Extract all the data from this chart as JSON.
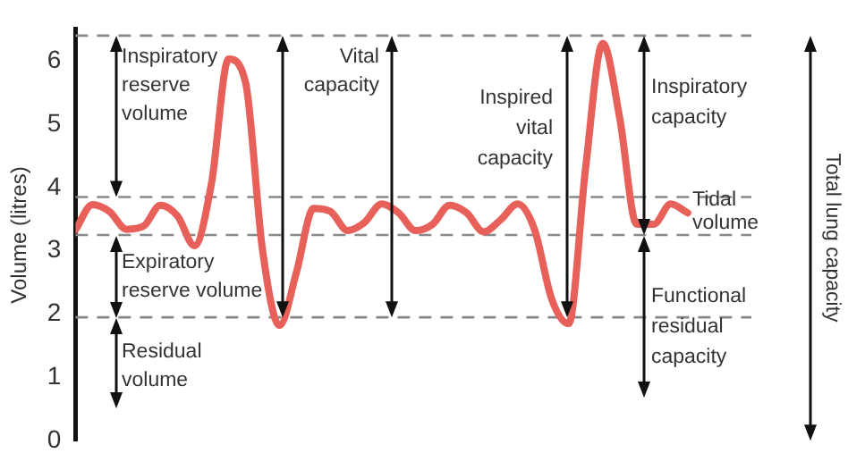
{
  "chart_data": {
    "type": "line",
    "ylabel": "Volume (litres)",
    "categories": [
      null,
      null,
      null,
      null,
      null,
      null,
      null,
      null,
      null,
      null,
      null,
      null,
      null,
      null,
      null,
      null,
      null,
      null,
      null,
      null,
      null,
      null,
      null,
      null,
      null,
      null,
      null,
      null,
      null,
      null,
      null,
      null,
      null,
      null,
      null,
      null,
      null
    ],
    "series": [
      {
        "color": "#e8605a",
        "values": [
          3.33,
          3.73,
          3.62,
          3.34,
          3.39,
          3.72,
          3.55,
          3.08,
          4.07,
          6.03,
          5.66,
          3.01,
          1.82,
          2.67,
          3.67,
          3.62,
          3.32,
          3.45,
          3.74,
          3.6,
          3.32,
          3.42,
          3.72,
          3.6,
          3.3,
          3.49,
          3.74,
          3.33,
          2.24,
          1.85,
          4.32,
          6.28,
          5.1,
          3.42,
          3.42,
          3.74,
          3.6
        ]
      }
    ],
    "ylim": [
      0,
      6.5
    ],
    "yticks": [
      0,
      1,
      2,
      3,
      4,
      5,
      6
    ],
    "tick_labels": "y",
    "grid": false,
    "legend": false,
    "marker": "none",
    "line_style": "solid",
    "ref_lines": [
      {
        "axis": "y",
        "value": 6.4,
        "color": "#888888",
        "line_style": "dashed"
      },
      {
        "axis": "y",
        "value": 3.85,
        "color": "#888888",
        "line_style": "dashed"
      },
      {
        "axis": "y",
        "value": 3.25,
        "color": "#888888",
        "line_style": "dashed"
      },
      {
        "axis": "y",
        "value": 1.95,
        "color": "#888888",
        "line_style": "dashed"
      }
    ],
    "annotations": [
      "Inspiratory reserve volume",
      "Expiratory reserve volume",
      "Residual volume",
      "Vital capacity",
      "Inspired vital capacity",
      "Inspiratory capacity",
      "Tidal volume",
      "Functional residual capacity",
      "Total lung capacity"
    ]
  }
}
